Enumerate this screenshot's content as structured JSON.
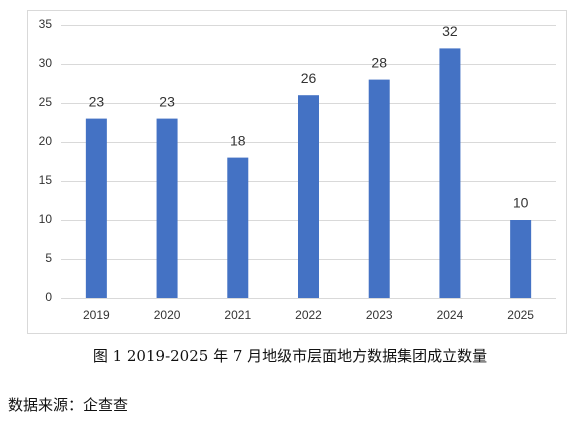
{
  "chart_data": {
    "type": "bar",
    "caption": "图 1 2019-2025 年 7 月地级市层面地方数据集团成立数量",
    "source": "数据来源：企查查",
    "categories": [
      "2019",
      "2020",
      "2021",
      "2022",
      "2023",
      "2024",
      "2025"
    ],
    "values": [
      23,
      23,
      18,
      26,
      28,
      32,
      10
    ],
    "color": "#4472c4",
    "ylim": [
      0,
      35
    ],
    "yticks": [
      0,
      5,
      10,
      15,
      20,
      25,
      30,
      35
    ],
    "grid": true
  }
}
